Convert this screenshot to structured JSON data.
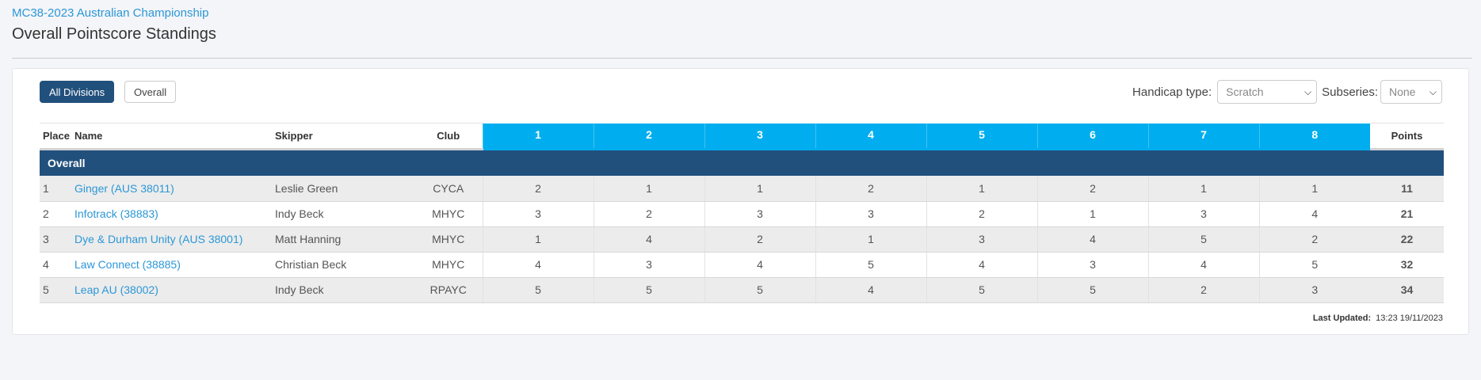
{
  "header": {
    "event_link": "MC38-2023 Australian Championship",
    "page_title": "Overall Pointscore Standings"
  },
  "toolbar": {
    "all_divisions": "All Divisions",
    "overall": "Overall",
    "handicap_label": "Handicap type:",
    "handicap_value": "Scratch",
    "subseries_label": "Subseries:",
    "subseries_value": "None"
  },
  "table": {
    "columns": {
      "place": "Place",
      "name": "Name",
      "skipper": "Skipper",
      "club": "Club",
      "points": "Points"
    },
    "races": [
      "1",
      "2",
      "3",
      "4",
      "5",
      "6",
      "7",
      "8"
    ],
    "division": "Overall",
    "rows": [
      {
        "place": "1",
        "name": "Ginger (AUS 38011)",
        "skipper": "Leslie Green",
        "club": "CYCA",
        "races": [
          "2",
          "1",
          "1",
          "2",
          "1",
          "2",
          "1",
          "1"
        ],
        "points": "11"
      },
      {
        "place": "2",
        "name": "Infotrack (38883)",
        "skipper": "Indy Beck",
        "club": "MHYC",
        "races": [
          "3",
          "2",
          "3",
          "3",
          "2",
          "1",
          "3",
          "4"
        ],
        "points": "21"
      },
      {
        "place": "3",
        "name": "Dye & Durham Unity (AUS 38001)",
        "skipper": "Matt Hanning",
        "club": "MHYC",
        "races": [
          "1",
          "4",
          "2",
          "1",
          "3",
          "4",
          "5",
          "2"
        ],
        "points": "22"
      },
      {
        "place": "4",
        "name": "Law Connect (38885)",
        "skipper": "Christian Beck",
        "club": "MHYC",
        "races": [
          "4",
          "3",
          "4",
          "5",
          "4",
          "3",
          "4",
          "5"
        ],
        "points": "32"
      },
      {
        "place": "5",
        "name": "Leap AU (38002)",
        "skipper": "Indy Beck",
        "club": "RPAYC",
        "races": [
          "5",
          "5",
          "5",
          "4",
          "5",
          "5",
          "2",
          "3"
        ],
        "points": "34"
      }
    ]
  },
  "footer": {
    "last_updated_label": "Last Updated:",
    "last_updated_value": "13:23 19/11/2023"
  },
  "colors": {
    "accent": "#00aeef",
    "division_bar": "#22507c",
    "link": "#2c97d6"
  }
}
